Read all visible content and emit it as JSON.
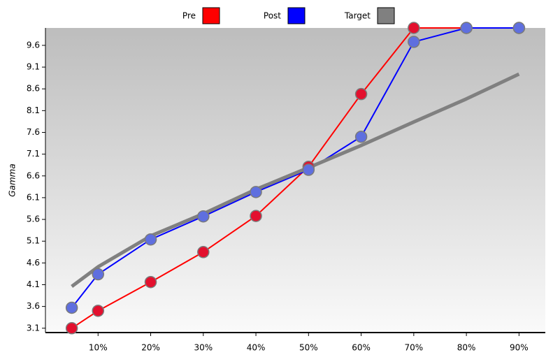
{
  "chart_data": {
    "type": "line",
    "y_label": "Gamma",
    "x": [
      5,
      10,
      20,
      30,
      40,
      50,
      60,
      70,
      80,
      90
    ],
    "series": [
      {
        "name": "Pre",
        "color": "#ff0000",
        "marker_color": "#e3102e",
        "line_width": 2,
        "markers": true,
        "values": [
          3.1,
          3.5,
          4.16,
          4.85,
          5.68,
          6.81,
          8.48,
          10.0,
          10.0,
          10.0
        ]
      },
      {
        "name": "Post",
        "color": "#0000ff",
        "marker_color": "#5f6fdf",
        "line_width": 2,
        "markers": true,
        "values": [
          3.57,
          4.34,
          5.14,
          5.67,
          6.23,
          6.74,
          7.5,
          9.68,
          10.0,
          10.0
        ]
      },
      {
        "name": "Target",
        "color": "#808080",
        "marker_color": "#808080",
        "line_width": 5,
        "markers": false,
        "values": [
          4.06,
          4.51,
          5.22,
          5.73,
          6.29,
          6.79,
          7.3,
          7.84,
          8.37,
          8.94
        ]
      }
    ],
    "xlim": [
      0,
      95
    ],
    "xticks": [
      {
        "value": 10,
        "label": "10%"
      },
      {
        "value": 20,
        "label": "20%"
      },
      {
        "value": 30,
        "label": "30%"
      },
      {
        "value": 40,
        "label": "40%"
      },
      {
        "value": 50,
        "label": "50%"
      },
      {
        "value": 60,
        "label": "60%"
      },
      {
        "value": 70,
        "label": "70%"
      },
      {
        "value": 80,
        "label": "80%"
      },
      {
        "value": 90,
        "label": "90%"
      }
    ],
    "ylim": [
      3.0,
      10.0
    ],
    "yticks": [
      3.1,
      3.6,
      4.1,
      4.6,
      5.1,
      5.6,
      6.1,
      6.6,
      7.1,
      7.6,
      8.1,
      8.6,
      9.1,
      9.6
    ],
    "legend": "top"
  }
}
